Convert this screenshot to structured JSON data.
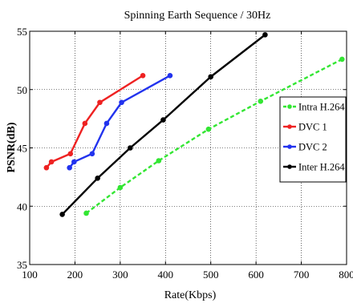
{
  "chart_data": {
    "type": "line",
    "title": "Spinning Earth Sequence / 30Hz",
    "xlabel": "Rate(Kbps)",
    "ylabel": "PSNR(dB)",
    "xlim": [
      100,
      800
    ],
    "ylim": [
      35,
      55
    ],
    "xticks": [
      100,
      200,
      300,
      400,
      500,
      600,
      700,
      800
    ],
    "yticks": [
      35,
      40,
      45,
      50,
      55
    ],
    "grid": true,
    "legend_position": "right",
    "series": [
      {
        "name": "Intra H.264",
        "color": "#33e633",
        "dash": true,
        "x": [
          225,
          300,
          385,
          495,
          610,
          790
        ],
        "y": [
          39.4,
          41.6,
          43.9,
          46.6,
          49.0,
          52.6
        ]
      },
      {
        "name": "DVC 1",
        "color": "#ee2222",
        "dash": false,
        "x": [
          137,
          148,
          190,
          222,
          255,
          350
        ],
        "y": [
          43.3,
          43.8,
          44.5,
          47.1,
          48.9,
          51.2
        ]
      },
      {
        "name": "DVC 2",
        "color": "#2233ee",
        "dash": false,
        "x": [
          188,
          198,
          238,
          270,
          303,
          410
        ],
        "y": [
          43.3,
          43.8,
          44.5,
          47.1,
          48.9,
          51.2
        ]
      },
      {
        "name": "Inter H.264",
        "color": "#000000",
        "dash": false,
        "x": [
          172,
          250,
          322,
          395,
          500,
          620
        ],
        "y": [
          39.3,
          42.4,
          45.0,
          47.4,
          51.1,
          54.7
        ]
      }
    ]
  }
}
